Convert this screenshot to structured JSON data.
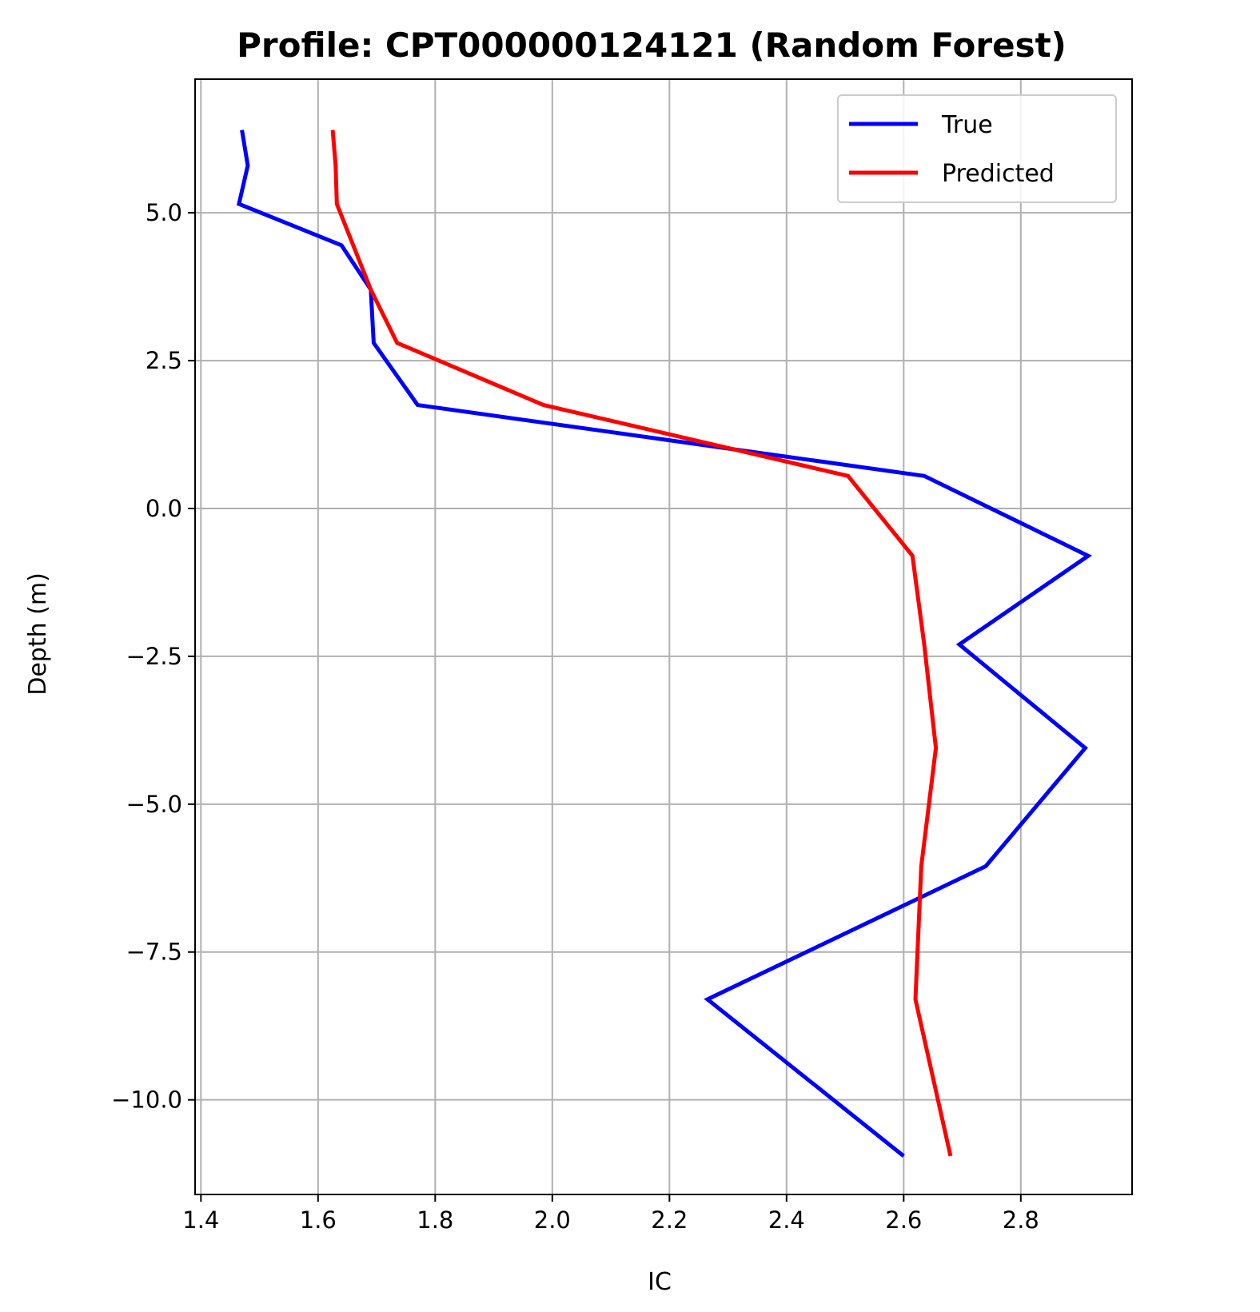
{
  "chart_data": {
    "type": "line",
    "title": "Profile: CPT000000124121 (Random Forest)",
    "xlabel": "IC",
    "ylabel": "Depth (m)",
    "xlim": [
      1.39,
      2.99
    ],
    "ylim": [
      -11.6,
      7.26
    ],
    "xticks": [
      1.4,
      1.6,
      1.8,
      2.0,
      2.2,
      2.4,
      2.6,
      2.8
    ],
    "xtick_labels": [
      "1.4",
      "1.6",
      "1.8",
      "2.0",
      "2.2",
      "2.4",
      "2.6",
      "2.8"
    ],
    "yticks": [
      5.0,
      2.5,
      0.0,
      -2.5,
      -5.0,
      -7.5,
      -10.0
    ],
    "ytick_labels": [
      "5.0",
      "2.5",
      "0.0",
      "−2.5",
      "−5.0",
      "−7.5",
      "−10.0"
    ],
    "grid": true,
    "legend_position": "top-right",
    "series": [
      {
        "name": "True",
        "color": "#0000ff",
        "points": [
          [
            1.47,
            6.4
          ],
          [
            1.48,
            5.8
          ],
          [
            1.465,
            5.15
          ],
          [
            1.64,
            4.45
          ],
          [
            1.69,
            3.7
          ],
          [
            1.695,
            2.8
          ],
          [
            1.77,
            1.75
          ],
          [
            2.635,
            0.55
          ],
          [
            2.915,
            -0.8
          ],
          [
            2.695,
            -2.3
          ],
          [
            2.91,
            -4.05
          ],
          [
            2.74,
            -6.05
          ],
          [
            2.265,
            -8.3
          ],
          [
            2.6,
            -10.95
          ]
        ]
      },
      {
        "name": "Predicted",
        "color": "#ff0000",
        "points": [
          [
            1.625,
            6.4
          ],
          [
            1.63,
            5.8
          ],
          [
            1.632,
            5.15
          ],
          [
            1.66,
            4.45
          ],
          [
            1.69,
            3.7
          ],
          [
            1.735,
            2.8
          ],
          [
            1.985,
            1.75
          ],
          [
            2.505,
            0.55
          ],
          [
            2.615,
            -0.8
          ],
          [
            2.635,
            -2.3
          ],
          [
            2.655,
            -4.05
          ],
          [
            2.63,
            -6.05
          ],
          [
            2.62,
            -8.3
          ],
          [
            2.68,
            -10.95
          ]
        ]
      }
    ]
  }
}
